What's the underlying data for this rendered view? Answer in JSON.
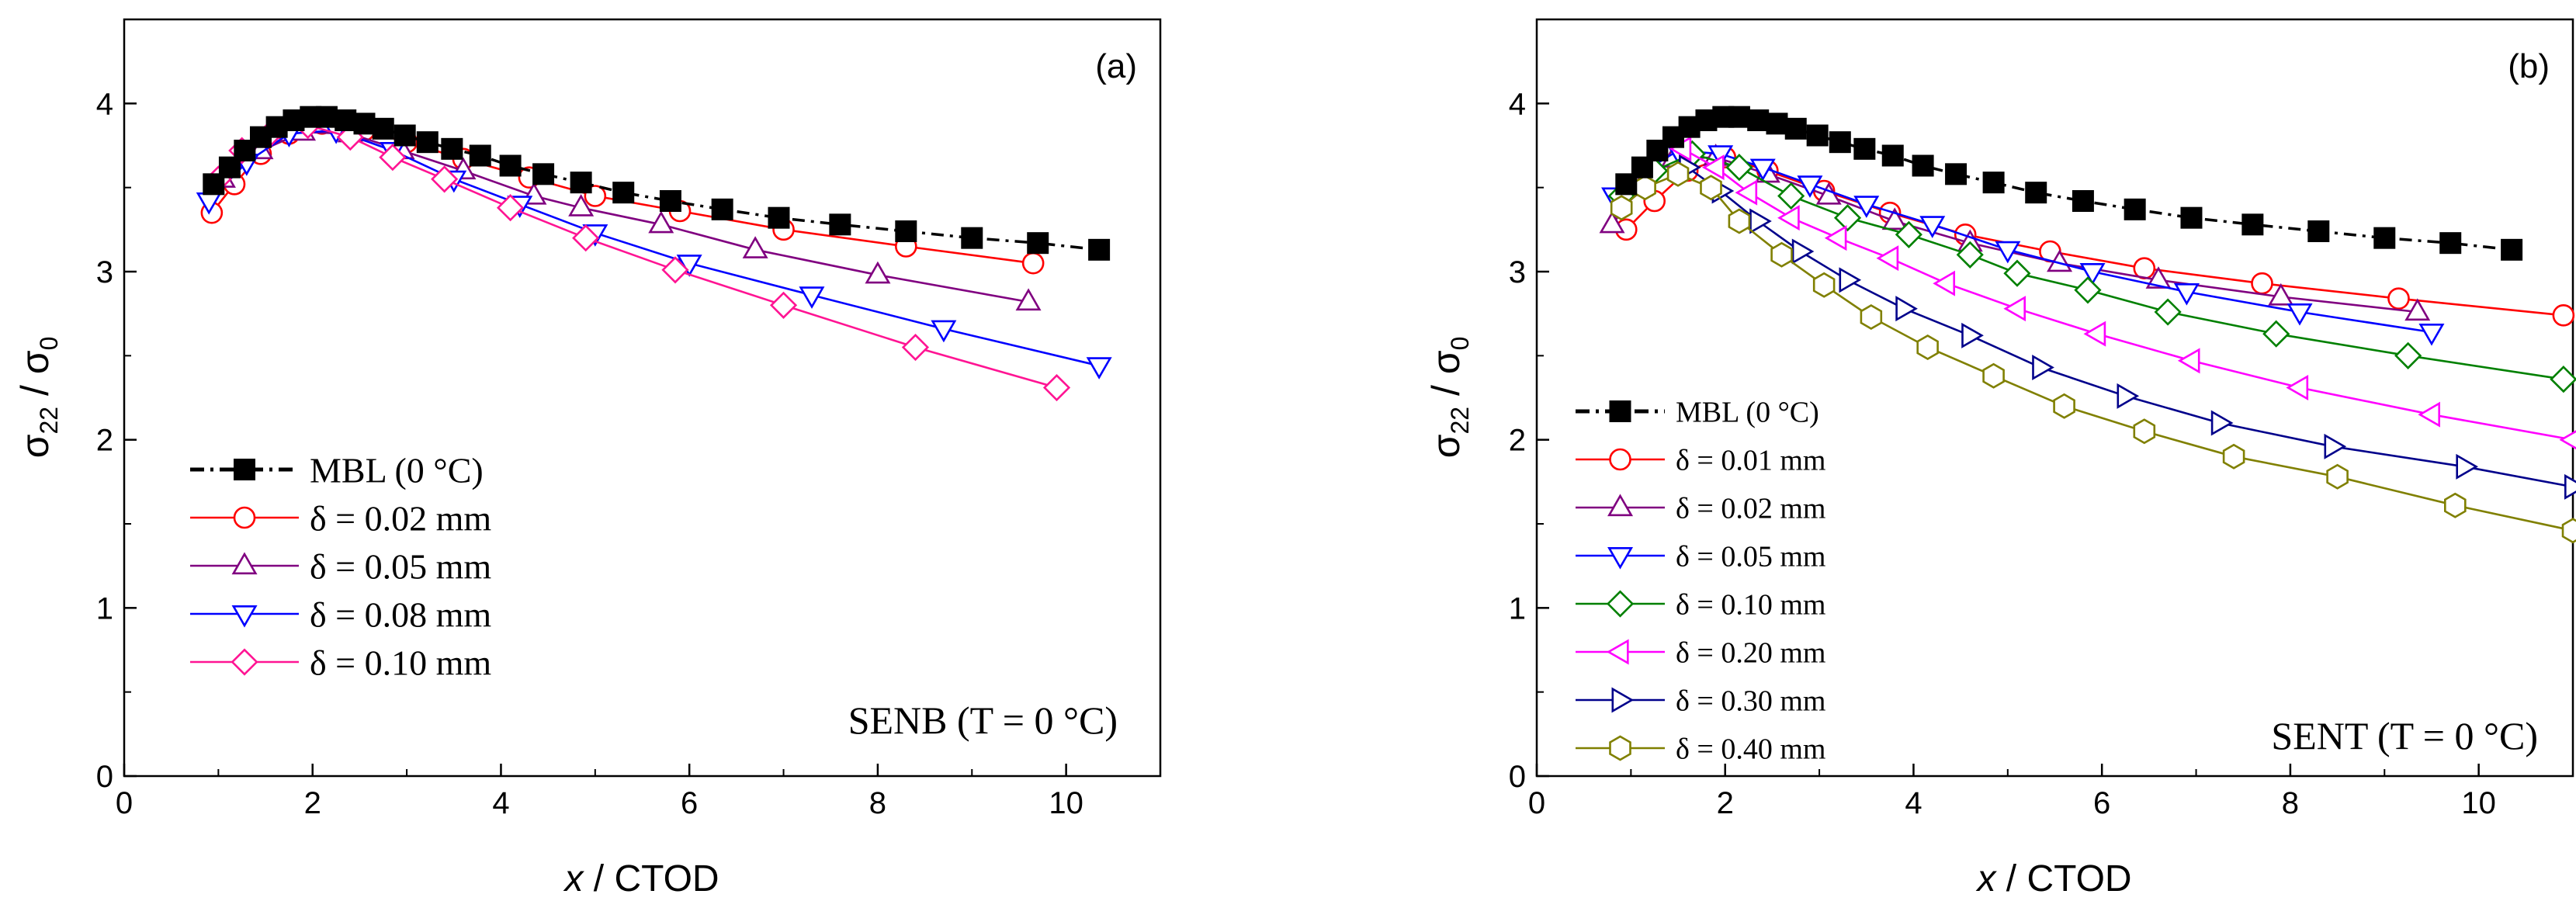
{
  "chart_data": [
    {
      "type": "line",
      "panel_label": "(a)",
      "annotation": "SENB (T = 0 °C)",
      "xlabel_var": "x",
      "xlabel_rest": " / CTOD",
      "ylabel": "σ22 / σ0",
      "xlim": [
        0,
        11
      ],
      "ylim": [
        0,
        4.5
      ],
      "xticks": [
        "0",
        "2",
        "4",
        "6",
        "8",
        "10"
      ],
      "yticks": [
        "0",
        "1",
        "2",
        "3",
        "4"
      ],
      "legend_position": "bottom-left",
      "series": [
        {
          "name": "MBL (0 °C)",
          "marker": "square",
          "color": "#000000",
          "dashed": true,
          "points": [
            [
              0.95,
              3.52
            ],
            [
              1.12,
              3.62
            ],
            [
              1.28,
              3.72
            ],
            [
              1.45,
              3.8
            ],
            [
              1.62,
              3.86
            ],
            [
              1.8,
              3.9
            ],
            [
              1.98,
              3.92
            ],
            [
              2.15,
              3.92
            ],
            [
              2.35,
              3.9
            ],
            [
              2.55,
              3.88
            ],
            [
              2.75,
              3.85
            ],
            [
              2.98,
              3.81
            ],
            [
              3.22,
              3.77
            ],
            [
              3.48,
              3.73
            ],
            [
              3.78,
              3.69
            ],
            [
              4.1,
              3.63
            ],
            [
              4.45,
              3.58
            ],
            [
              4.85,
              3.53
            ],
            [
              5.3,
              3.47
            ],
            [
              5.8,
              3.42
            ],
            [
              6.35,
              3.37
            ],
            [
              6.95,
              3.32
            ],
            [
              7.6,
              3.28
            ],
            [
              8.3,
              3.24
            ],
            [
              9.0,
              3.2
            ],
            [
              9.7,
              3.17
            ],
            [
              10.35,
              3.13
            ]
          ]
        },
        {
          "name": "δ = 0.02 mm",
          "marker": "circle",
          "color": "#ff0000",
          "dashed": false,
          "points": [
            [
              0.93,
              3.35
            ],
            [
              1.17,
              3.52
            ],
            [
              1.45,
              3.7
            ],
            [
              1.75,
              3.82
            ],
            [
              2.1,
              3.88
            ],
            [
              2.55,
              3.84
            ],
            [
              3.0,
              3.77
            ],
            [
              3.6,
              3.67
            ],
            [
              4.3,
              3.56
            ],
            [
              5.0,
              3.45
            ],
            [
              5.9,
              3.36
            ],
            [
              7.0,
              3.25
            ],
            [
              8.3,
              3.15
            ],
            [
              9.65,
              3.05
            ]
          ]
        },
        {
          "name": "δ = 0.05 mm",
          "marker": "triangle-up",
          "color": "#800080",
          "dashed": false,
          "points": [
            [
              1.05,
              3.55
            ],
            [
              1.45,
              3.72
            ],
            [
              1.9,
              3.83
            ],
            [
              2.4,
              3.82
            ],
            [
              2.95,
              3.72
            ],
            [
              3.6,
              3.6
            ],
            [
              4.35,
              3.45
            ],
            [
              4.85,
              3.38
            ],
            [
              5.7,
              3.28
            ],
            [
              6.7,
              3.13
            ],
            [
              8.0,
              2.98
            ],
            [
              9.6,
              2.82
            ]
          ]
        },
        {
          "name": "δ = 0.08 mm",
          "marker": "triangle-down",
          "color": "#0000ff",
          "dashed": false,
          "points": [
            [
              0.9,
              3.42
            ],
            [
              1.3,
              3.65
            ],
            [
              1.75,
              3.82
            ],
            [
              2.25,
              3.84
            ],
            [
              2.85,
              3.72
            ],
            [
              3.5,
              3.55
            ],
            [
              4.2,
              3.4
            ],
            [
              5.0,
              3.23
            ],
            [
              6.0,
              3.05
            ],
            [
              7.3,
              2.86
            ],
            [
              8.7,
              2.66
            ],
            [
              10.35,
              2.44
            ]
          ]
        },
        {
          "name": "δ = 0.10 mm",
          "marker": "diamond",
          "color": "#ff1493",
          "dashed": false,
          "points": [
            [
              1.0,
              3.55
            ],
            [
              1.25,
              3.72
            ],
            [
              1.55,
              3.82
            ],
            [
              1.95,
              3.87
            ],
            [
              2.4,
              3.8
            ],
            [
              2.85,
              3.68
            ],
            [
              3.4,
              3.55
            ],
            [
              4.1,
              3.38
            ],
            [
              4.9,
              3.2
            ],
            [
              5.85,
              3.01
            ],
            [
              7.0,
              2.8
            ],
            [
              8.4,
              2.55
            ],
            [
              9.9,
              2.31
            ]
          ]
        }
      ]
    },
    {
      "type": "line",
      "panel_label": "(b)",
      "annotation": "SENT (T = 0 °C)",
      "xlabel_var": "x",
      "xlabel_rest": " / CTOD",
      "ylabel": "σ22 / σ0",
      "xlim": [
        0,
        11
      ],
      "ylim": [
        0,
        4.5
      ],
      "xticks": [
        "0",
        "2",
        "4",
        "6",
        "8",
        "10"
      ],
      "yticks": [
        "0",
        "1",
        "2",
        "3",
        "4"
      ],
      "legend_position": "bottom-left",
      "series": [
        {
          "name": "MBL (0 °C)",
          "marker": "square",
          "color": "#000000",
          "dashed": true,
          "points": [
            [
              0.95,
              3.52
            ],
            [
              1.12,
              3.62
            ],
            [
              1.28,
              3.72
            ],
            [
              1.45,
              3.8
            ],
            [
              1.62,
              3.86
            ],
            [
              1.8,
              3.9
            ],
            [
              1.98,
              3.92
            ],
            [
              2.15,
              3.92
            ],
            [
              2.35,
              3.9
            ],
            [
              2.55,
              3.88
            ],
            [
              2.75,
              3.85
            ],
            [
              2.98,
              3.81
            ],
            [
              3.22,
              3.77
            ],
            [
              3.48,
              3.73
            ],
            [
              3.78,
              3.69
            ],
            [
              4.1,
              3.63
            ],
            [
              4.45,
              3.58
            ],
            [
              4.85,
              3.53
            ],
            [
              5.3,
              3.47
            ],
            [
              5.8,
              3.42
            ],
            [
              6.35,
              3.37
            ],
            [
              6.95,
              3.32
            ],
            [
              7.6,
              3.28
            ],
            [
              8.3,
              3.24
            ],
            [
              9.0,
              3.2
            ],
            [
              9.7,
              3.17
            ],
            [
              10.35,
              3.13
            ]
          ]
        },
        {
          "name": "δ = 0.01 mm",
          "marker": "circle",
          "color": "#ff0000",
          "dashed": false,
          "points": [
            [
              0.95,
              3.25
            ],
            [
              1.25,
              3.42
            ],
            [
              1.6,
              3.6
            ],
            [
              2.0,
              3.68
            ],
            [
              2.45,
              3.6
            ],
            [
              3.05,
              3.48
            ],
            [
              3.75,
              3.35
            ],
            [
              4.55,
              3.22
            ],
            [
              5.45,
              3.12
            ],
            [
              6.45,
              3.02
            ],
            [
              7.7,
              2.93
            ],
            [
              9.15,
              2.84
            ],
            [
              10.9,
              2.74
            ]
          ]
        },
        {
          "name": "δ = 0.02 mm",
          "marker": "triangle-up",
          "color": "#800080",
          "dashed": false,
          "points": [
            [
              0.8,
              3.28
            ],
            [
              1.1,
              3.5
            ],
            [
              1.45,
              3.67
            ],
            [
              1.9,
              3.68
            ],
            [
              2.45,
              3.58
            ],
            [
              3.1,
              3.45
            ],
            [
              3.8,
              3.3
            ],
            [
              4.6,
              3.17
            ],
            [
              5.55,
              3.05
            ],
            [
              6.6,
              2.95
            ],
            [
              7.9,
              2.85
            ],
            [
              9.35,
              2.76
            ]
          ]
        },
        {
          "name": "δ = 0.05 mm",
          "marker": "triangle-down",
          "color": "#0000ff",
          "dashed": false,
          "points": [
            [
              0.82,
              3.45
            ],
            [
              1.15,
              3.6
            ],
            [
              1.5,
              3.72
            ],
            [
              1.95,
              3.7
            ],
            [
              2.4,
              3.62
            ],
            [
              2.9,
              3.52
            ],
            [
              3.5,
              3.4
            ],
            [
              4.2,
              3.28
            ],
            [
              5.0,
              3.13
            ],
            [
              5.9,
              3.0
            ],
            [
              6.9,
              2.88
            ],
            [
              8.1,
              2.76
            ],
            [
              9.5,
              2.64
            ]
          ]
        },
        {
          "name": "δ = 0.10 mm",
          "marker": "diamond",
          "color": "#008000",
          "dashed": false,
          "points": [
            [
              0.9,
              3.45
            ],
            [
              1.25,
              3.6
            ],
            [
              1.65,
              3.7
            ],
            [
              2.15,
              3.62
            ],
            [
              2.7,
              3.45
            ],
            [
              3.3,
              3.32
            ],
            [
              3.95,
              3.22
            ],
            [
              4.6,
              3.1
            ],
            [
              5.1,
              2.99
            ],
            [
              5.85,
              2.89
            ],
            [
              6.7,
              2.76
            ],
            [
              7.85,
              2.63
            ],
            [
              9.25,
              2.5
            ],
            [
              10.9,
              2.36
            ]
          ]
        },
        {
          "name": "δ = 0.20 mm",
          "marker": "triangle-left",
          "color": "#ff00ff",
          "dashed": false,
          "points": [
            [
              1.55,
              3.73
            ],
            [
              1.9,
              3.62
            ],
            [
              2.25,
              3.47
            ],
            [
              2.7,
              3.32
            ],
            [
              3.2,
              3.2
            ],
            [
              3.75,
              3.08
            ],
            [
              4.35,
              2.93
            ],
            [
              5.1,
              2.78
            ],
            [
              5.95,
              2.63
            ],
            [
              6.95,
              2.47
            ],
            [
              8.1,
              2.31
            ],
            [
              9.5,
              2.15
            ],
            [
              11.0,
              2.0
            ]
          ]
        },
        {
          "name": "δ = 0.30 mm",
          "marker": "triangle-right",
          "color": "#00008b",
          "dashed": false,
          "points": [
            [
              1.6,
              3.62
            ],
            [
              1.95,
              3.48
            ],
            [
              2.35,
              3.3
            ],
            [
              2.8,
              3.12
            ],
            [
              3.3,
              2.95
            ],
            [
              3.9,
              2.78
            ],
            [
              4.6,
              2.62
            ],
            [
              5.35,
              2.43
            ],
            [
              6.25,
              2.26
            ],
            [
              7.25,
              2.1
            ],
            [
              8.45,
              1.96
            ],
            [
              9.85,
              1.84
            ],
            [
              11.0,
              1.72
            ]
          ]
        },
        {
          "name": "δ = 0.40 mm",
          "marker": "hexagon",
          "color": "#808000",
          "dashed": false,
          "points": [
            [
              0.9,
              3.38
            ],
            [
              1.15,
              3.5
            ],
            [
              1.5,
              3.58
            ],
            [
              1.85,
              3.5
            ],
            [
              2.15,
              3.3
            ],
            [
              2.6,
              3.1
            ],
            [
              3.05,
              2.92
            ],
            [
              3.55,
              2.73
            ],
            [
              4.15,
              2.55
            ],
            [
              4.85,
              2.38
            ],
            [
              5.6,
              2.2
            ],
            [
              6.45,
              2.05
            ],
            [
              7.4,
              1.9
            ],
            [
              8.5,
              1.78
            ],
            [
              9.75,
              1.61
            ],
            [
              11.0,
              1.46
            ]
          ]
        }
      ]
    }
  ]
}
